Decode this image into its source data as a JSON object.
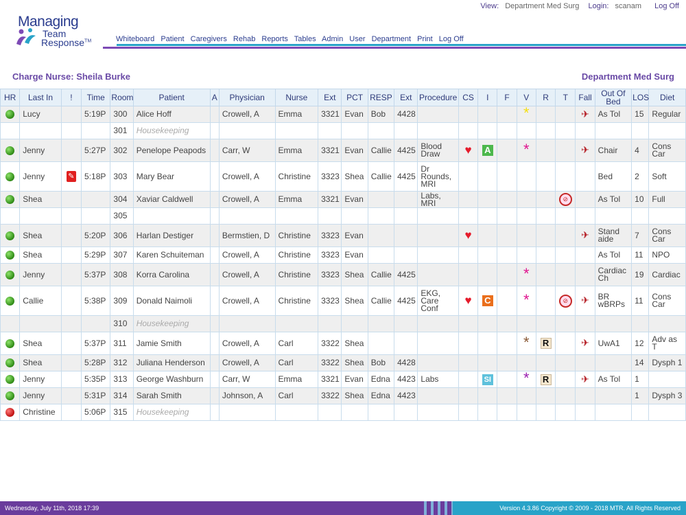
{
  "app": {
    "logo_line1": "Managing",
    "logo_line2": "Team",
    "logo_line3": "Response",
    "logo_tm": "TM"
  },
  "topbar": {
    "view_label": "View:",
    "view_value": "Department Med Surg",
    "login_label": "Login:",
    "login_value": "scanam",
    "logoff": "Log Off"
  },
  "nav": [
    "Whiteboard",
    "Patient",
    "Caregivers",
    "Rehab",
    "Reports",
    "Tables",
    "Admin",
    "User",
    "Department",
    "Print",
    "Log Off"
  ],
  "charge_nurse": "Charge Nurse: Sheila Burke",
  "department": "Department Med Surg",
  "columns": [
    "HR",
    "Last In",
    "!",
    "Time",
    "Room",
    "Patient",
    "A",
    "Physician",
    "Nurse",
    "Ext",
    "PCT",
    "RESP",
    "Ext",
    "Procedure",
    "CS",
    "I",
    "F",
    "V",
    "R",
    "T",
    "Fall",
    "Out Of Bed",
    "LOS",
    "Diet"
  ],
  "rows": [
    {
      "hr": "green",
      "last_in": "Lucy",
      "alert": "",
      "time": "5:19P",
      "room": "300",
      "patient": "Alice Hoff",
      "a": "",
      "physician": "Crowell, A",
      "nurse": "Emma",
      "ext": "3321",
      "pct": "Evan",
      "resp": "Bob",
      "ext2": "4428",
      "procedure": "",
      "cs": "",
      "i": "",
      "f": "",
      "v": "star-yellow",
      "r": "",
      "t": "",
      "fall": "fall",
      "oob": "As Tol",
      "los": "15",
      "diet": "Regular"
    },
    {
      "hr": "",
      "last_in": "",
      "alert": "",
      "time": "",
      "room": "301",
      "patient": "Housekeeping",
      "hk": true,
      "a": "",
      "physician": "",
      "nurse": "",
      "ext": "",
      "pct": "",
      "resp": "",
      "ext2": "",
      "procedure": "",
      "cs": "",
      "i": "",
      "f": "",
      "v": "",
      "r": "",
      "t": "",
      "fall": "",
      "oob": "",
      "los": "",
      "diet": ""
    },
    {
      "hr": "green",
      "last_in": "Jenny",
      "alert": "",
      "time": "5:27P",
      "room": "302",
      "patient": "Penelope Peapods",
      "a": "",
      "physician": "Carr, W",
      "nurse": "Emma",
      "ext": "3321",
      "pct": "Evan",
      "resp": "Callie",
      "ext2": "4425",
      "procedure": "Blood Draw",
      "cs": "heart",
      "i": "A",
      "f": "",
      "v": "star-magenta",
      "r": "",
      "t": "",
      "fall": "fall",
      "oob": "Chair",
      "los": "4",
      "diet": "Cons Car"
    },
    {
      "hr": "green",
      "last_in": "Jenny",
      "alert": "note",
      "time": "5:18P",
      "room": "303",
      "patient": "Mary Bear",
      "a": "",
      "physician": "Crowell, A",
      "nurse": "Christine",
      "ext": "3323",
      "pct": "Shea",
      "resp": "Callie",
      "ext2": "4425",
      "procedure": "Dr Rounds, MRI",
      "cs": "",
      "i": "",
      "f": "",
      "v": "",
      "r": "",
      "t": "",
      "fall": "",
      "oob": "Bed",
      "los": "2",
      "diet": "Soft"
    },
    {
      "hr": "green",
      "last_in": "Shea",
      "alert": "",
      "time": "",
      "room": "304",
      "patient": "Xaviar Caldwell",
      "a": "",
      "physician": "Crowell, A",
      "nurse": "Emma",
      "ext": "3321",
      "pct": "Evan",
      "resp": "",
      "ext2": "",
      "procedure": "Labs, MRI",
      "cs": "",
      "i": "",
      "f": "",
      "v": "",
      "r": "",
      "t": "npo",
      "fall": "",
      "oob": "As Tol",
      "los": "10",
      "diet": "Full"
    },
    {
      "hr": "",
      "last_in": "",
      "alert": "",
      "time": "",
      "room": "305",
      "patient": "",
      "a": "",
      "physician": "",
      "nurse": "",
      "ext": "",
      "pct": "",
      "resp": "",
      "ext2": "",
      "procedure": "",
      "cs": "",
      "i": "",
      "f": "",
      "v": "",
      "r": "",
      "t": "",
      "fall": "",
      "oob": "",
      "los": "",
      "diet": ""
    },
    {
      "hr": "green",
      "last_in": "Shea",
      "alert": "",
      "time": "5:20P",
      "room": "306",
      "patient": "Harlan Destiger",
      "a": "",
      "physician": "Bermstien, D",
      "nurse": "Christine",
      "ext": "3323",
      "pct": "Evan",
      "resp": "",
      "ext2": "",
      "procedure": "",
      "cs": "heart",
      "i": "",
      "f": "",
      "v": "",
      "r": "",
      "t": "",
      "fall": "fall",
      "oob": "Stand aide",
      "los": "7",
      "diet": "Cons Car"
    },
    {
      "hr": "green",
      "last_in": "Shea",
      "alert": "",
      "time": "5:29P",
      "room": "307",
      "patient": "Karen Schuiteman",
      "a": "",
      "physician": "Crowell, A",
      "nurse": "Christine",
      "ext": "3323",
      "pct": "Evan",
      "resp": "",
      "ext2": "",
      "procedure": "",
      "cs": "",
      "i": "",
      "f": "",
      "v": "",
      "r": "",
      "t": "",
      "fall": "",
      "oob": "As Tol",
      "los": "11",
      "diet": "NPO"
    },
    {
      "hr": "green",
      "last_in": "Jenny",
      "alert": "",
      "time": "5:37P",
      "room": "308",
      "patient": "Korra Carolina",
      "a": "",
      "physician": "Crowell, A",
      "nurse": "Christine",
      "ext": "3323",
      "pct": "Shea",
      "resp": "Callie",
      "ext2": "4425",
      "procedure": "",
      "cs": "",
      "i": "",
      "f": "",
      "v": "star-magenta",
      "r": "",
      "t": "",
      "fall": "",
      "oob": "Cardiac Ch",
      "los": "19",
      "diet": "Cardiac"
    },
    {
      "hr": "green",
      "last_in": "Callie",
      "alert": "",
      "time": "5:38P",
      "room": "309",
      "patient": "Donald Naimoli",
      "a": "",
      "physician": "Crowell, A",
      "nurse": "Christine",
      "ext": "3323",
      "pct": "Shea",
      "resp": "Callie",
      "ext2": "4425",
      "procedure": "EKG, Care Conf",
      "cs": "heart",
      "i": "C",
      "f": "",
      "v": "star-magenta",
      "r": "",
      "t": "npo",
      "fall": "fall",
      "oob": "BR wBRPs",
      "los": "11",
      "diet": "Cons Car"
    },
    {
      "hr": "",
      "last_in": "",
      "alert": "",
      "time": "",
      "room": "310",
      "patient": "Housekeeping",
      "hk": true,
      "a": "",
      "physician": "",
      "nurse": "",
      "ext": "",
      "pct": "",
      "resp": "",
      "ext2": "",
      "procedure": "",
      "cs": "",
      "i": "",
      "f": "",
      "v": "",
      "r": "",
      "t": "",
      "fall": "",
      "oob": "",
      "los": "",
      "diet": ""
    },
    {
      "hr": "green",
      "last_in": "Shea",
      "alert": "",
      "time": "5:37P",
      "room": "311",
      "patient": "Jamie Smith",
      "a": "",
      "physician": "Crowell, A",
      "nurse": "Carl",
      "ext": "3322",
      "pct": "Shea",
      "resp": "",
      "ext2": "",
      "procedure": "",
      "cs": "",
      "i": "",
      "f": "",
      "v": "star-brown",
      "r": "R",
      "t": "",
      "fall": "fall",
      "oob": "UwA1",
      "los": "12",
      "diet": "Adv as T"
    },
    {
      "hr": "green",
      "last_in": "Shea",
      "alert": "",
      "time": "5:28P",
      "room": "312",
      "patient": "Juliana Henderson",
      "a": "",
      "physician": "Crowell, A",
      "nurse": "Carl",
      "ext": "3322",
      "pct": "Shea",
      "resp": "Bob",
      "ext2": "4428",
      "procedure": "",
      "cs": "",
      "i": "",
      "f": "",
      "v": "",
      "r": "",
      "t": "",
      "fall": "",
      "oob": "",
      "los": "14",
      "diet": "Dysph 1"
    },
    {
      "hr": "green",
      "last_in": "Jenny",
      "alert": "",
      "time": "5:35P",
      "room": "313",
      "patient": "George Washburn",
      "a": "",
      "physician": "Carr, W",
      "nurse": "Emma",
      "ext": "3321",
      "pct": "Evan",
      "resp": "Edna",
      "ext2": "4423",
      "procedure": "Labs",
      "cs": "",
      "i": "SI",
      "f": "",
      "v": "star-purple",
      "r": "R",
      "t": "",
      "fall": "fall",
      "oob": "As Tol",
      "los": "1",
      "diet": ""
    },
    {
      "hr": "green",
      "last_in": "Jenny",
      "alert": "",
      "time": "5:31P",
      "room": "314",
      "patient": "Sarah Smith",
      "a": "",
      "physician": "Johnson, A",
      "nurse": "Carl",
      "ext": "3322",
      "pct": "Shea",
      "resp": "Edna",
      "ext2": "4423",
      "procedure": "",
      "cs": "",
      "i": "",
      "f": "",
      "v": "",
      "r": "",
      "t": "",
      "fall": "",
      "oob": "",
      "los": "1",
      "diet": "Dysph 3"
    },
    {
      "hr": "red",
      "last_in": "Christine",
      "alert": "",
      "time": "5:06P",
      "room": "315",
      "patient": "Housekeeping",
      "hk": true,
      "a": "",
      "physician": "",
      "nurse": "",
      "ext": "",
      "pct": "",
      "resp": "",
      "ext2": "",
      "procedure": "",
      "cs": "",
      "i": "",
      "f": "",
      "v": "",
      "r": "",
      "t": "",
      "fall": "",
      "oob": "",
      "los": "",
      "diet": ""
    }
  ],
  "footer": {
    "date": "Wednesday, July 11th, 2018 17:39",
    "version": "Version 4.3.86  Copyright © 2009 - 2018 MTR. All Rights Reserved"
  }
}
